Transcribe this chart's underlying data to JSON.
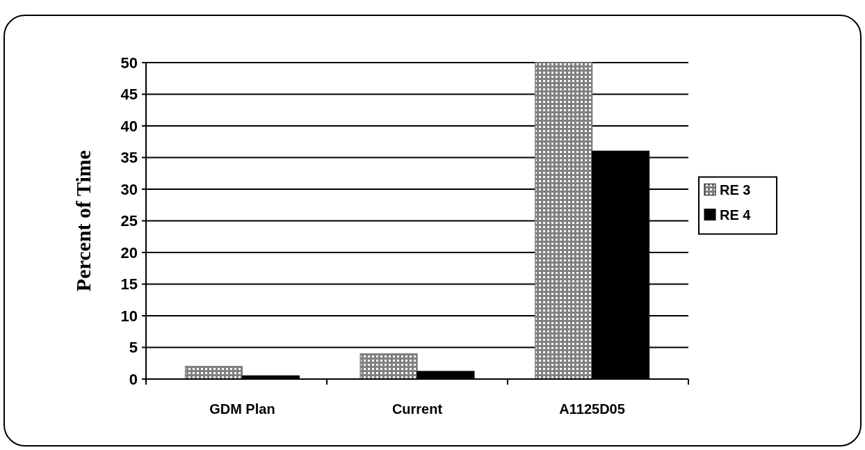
{
  "chart_data": {
    "type": "bar",
    "ylabel": "Percent of Time",
    "categories": [
      "GDM Plan",
      "Current",
      "A1125D05"
    ],
    "series": [
      {
        "name": "RE 3",
        "color": "#808080",
        "values": [
          2,
          4,
          50
        ]
      },
      {
        "name": "RE 4",
        "color": "#000000",
        "values": [
          0.5,
          1.2,
          36
        ]
      }
    ],
    "ylim": [
      0,
      50
    ],
    "yticks": [
      0,
      5,
      10,
      15,
      20,
      25,
      30,
      35,
      40,
      45,
      50
    ],
    "grid": "y",
    "legend": "right"
  }
}
